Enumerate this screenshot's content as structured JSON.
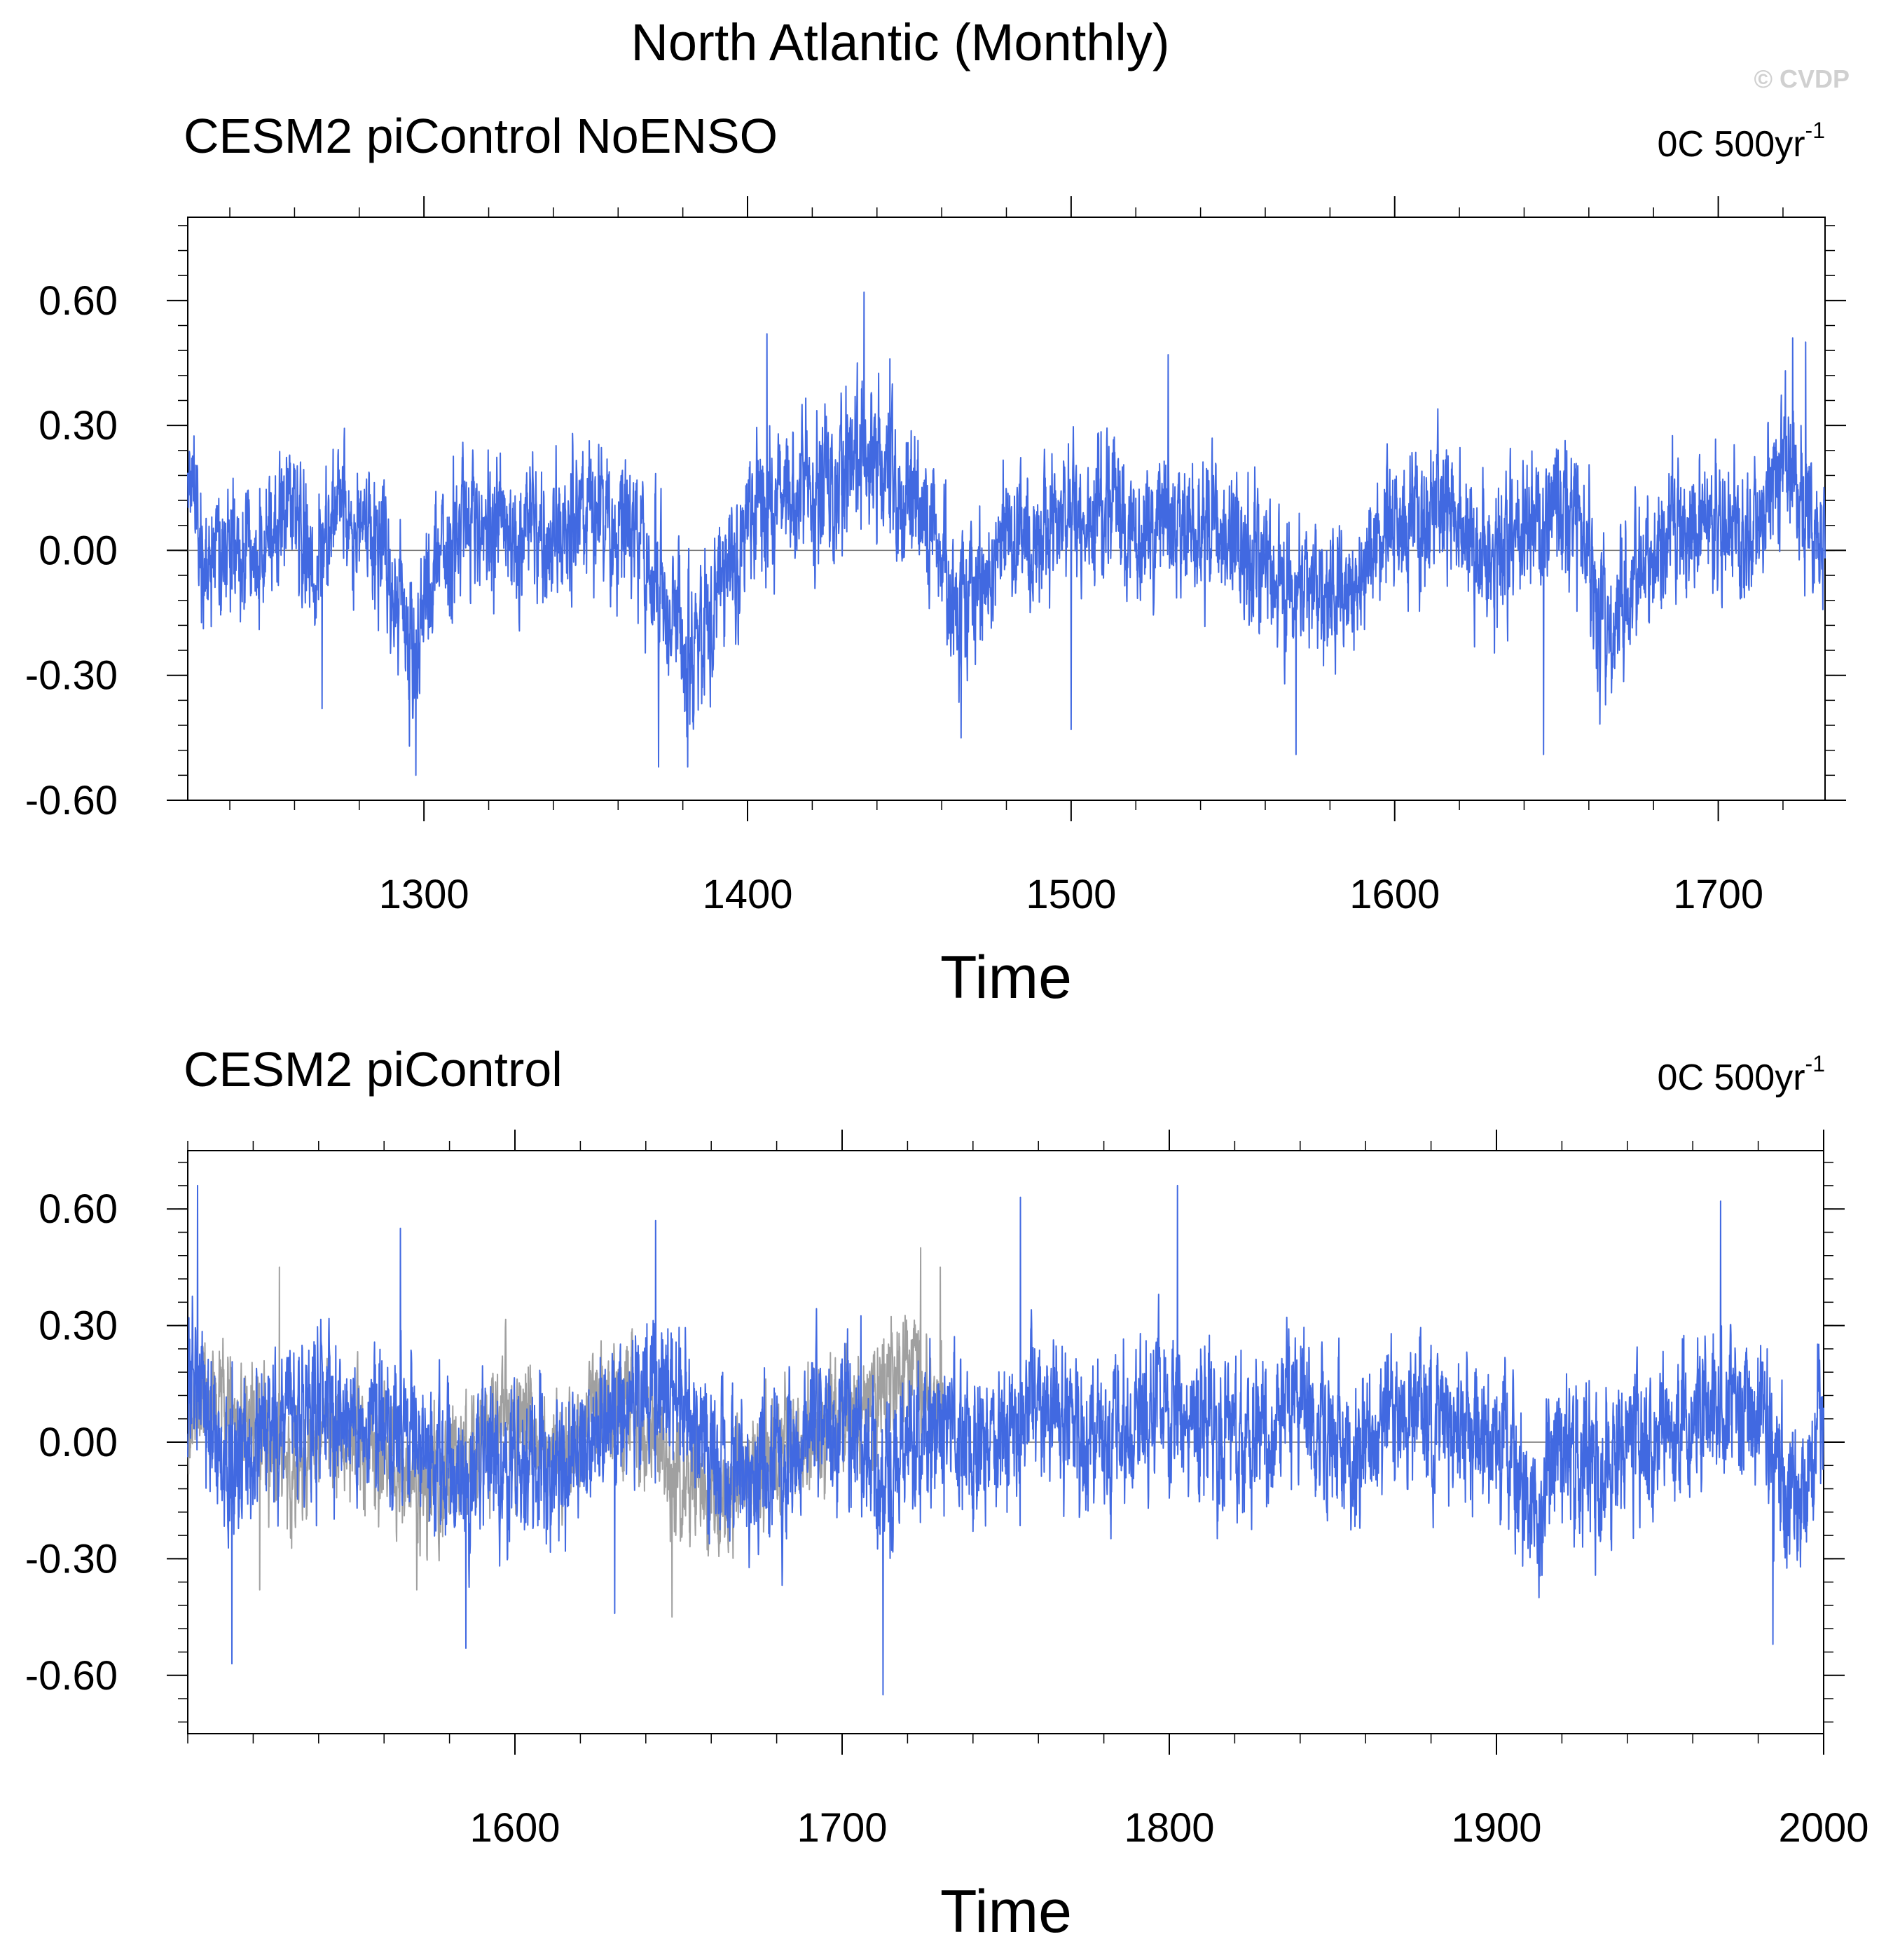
{
  "figure_title": "North Atlantic (Monthly)",
  "watermark": "© CVDP",
  "colors": {
    "model": "#4169e1",
    "overlay": "#a0a0a0",
    "axis": "#000000"
  },
  "chart_data": [
    {
      "type": "line",
      "title": "CESM2 piControl NoENSO",
      "trend_label": "0C 500yr",
      "trend_label_sup": "-1",
      "xlabel": "Time",
      "ylabel": "",
      "xlim": [
        1227,
        1733
      ],
      "ylim": [
        -0.6,
        0.8
      ],
      "xticks": [
        1300,
        1400,
        1500,
        1600,
        1700
      ],
      "xtick_labels": [
        "1300",
        "1400",
        "1500",
        "1600",
        "1700"
      ],
      "yticks": [
        -0.6,
        -0.3,
        0.0,
        0.3,
        0.6
      ],
      "ytick_labels": [
        "-0.60",
        "-0.30",
        "0.00",
        "0.30",
        "0.60"
      ],
      "grid": false,
      "zero_line": true,
      "series": [
        {
          "color": "#4169e1",
          "x_start": 1227,
          "x_end": 1733,
          "samples_per_year": 12,
          "anchors": {
            "x": [
              1228,
              1232,
              1235,
              1245,
              1258,
              1266,
              1275,
              1285,
              1292,
              1297,
              1303,
              1315,
              1325,
              1340,
              1350,
              1362,
              1372,
              1382,
              1392,
              1405,
              1420,
              1435,
              1445,
              1455,
              1465,
              1480,
              1500,
              1510,
              1520,
              1530,
              1545,
              1560,
              1575,
              1590,
              1600,
              1612,
              1625,
              1640,
              1655,
              1665,
              1680,
              1700,
              1715,
              1722,
              1728,
              1733
            ],
            "y": [
              0.2,
              0.0,
              -0.05,
              -0.03,
              0.12,
              -0.05,
              0.08,
              0.02,
              -0.12,
              -0.2,
              -0.05,
              0.05,
              0.08,
              0.03,
              0.12,
              0.05,
              -0.05,
              -0.28,
              -0.05,
              0.1,
              0.15,
              0.22,
              0.15,
              0.1,
              -0.15,
              0.02,
              0.08,
              0.12,
              0.03,
              0.05,
              0.06,
              -0.05,
              -0.1,
              -0.08,
              0.05,
              0.1,
              0.0,
              0.02,
              0.1,
              -0.18,
              0.02,
              0.05,
              0.08,
              0.2,
              0.08,
              0.0
            ]
          },
          "noise_sd": 0.085,
          "peaks": [
            {
              "x": 1436.0,
              "y": 0.62
            },
            {
              "x": 1406.0,
              "y": 0.52
            },
            {
              "x": 1444.0,
              "y": 0.46
            },
            {
              "x": 1530.0,
              "y": 0.47
            },
            {
              "x": 1723.0,
              "y": 0.51
            },
            {
              "x": 1727.0,
              "y": 0.5
            },
            {
              "x": 1297.5,
              "y": -0.54
            },
            {
              "x": 1381.5,
              "y": -0.52
            },
            {
              "x": 1372.5,
              "y": -0.52
            },
            {
              "x": 1569.5,
              "y": -0.49
            },
            {
              "x": 1646.0,
              "y": -0.49
            },
            {
              "x": 1466.0,
              "y": -0.45
            },
            {
              "x": 1500.0,
              "y": -0.43
            },
            {
              "x": 1268.5,
              "y": -0.38
            },
            {
              "x": 1295.5,
              "y": -0.47
            }
          ],
          "seed": 17
        }
      ]
    },
    {
      "type": "line",
      "title": "CESM2 piControl",
      "trend_label": "0C 500yr",
      "trend_label_sup": "-1",
      "xlabel": "Time",
      "ylabel": "",
      "xlim": [
        1500,
        2000
      ],
      "ylim": [
        -0.75,
        0.75
      ],
      "xticks": [
        1600,
        1700,
        1800,
        1900,
        2000
      ],
      "xtick_labels": [
        "1600",
        "1700",
        "1800",
        "1900",
        "2000"
      ],
      "yticks": [
        -0.6,
        -0.3,
        0.0,
        0.3,
        0.6
      ],
      "ytick_labels": [
        "-0.60",
        "-0.30",
        "0.00",
        "0.30",
        "0.60"
      ],
      "grid": false,
      "zero_line": true,
      "series": [
        {
          "color": "#a0a0a0",
          "x_start": 1500,
          "x_end": 1731,
          "samples_per_year": 12,
          "anchors": {
            "x": [
              1500,
              1510,
              1520,
              1530,
              1545,
              1560,
              1570,
              1585,
              1595,
              1605,
              1615,
              1625,
              1640,
              1650,
              1665,
              1680,
              1695,
              1710,
              1722,
              1731
            ],
            "y": [
              0.1,
              0.1,
              0.05,
              -0.08,
              0.05,
              -0.05,
              -0.12,
              -0.05,
              0.08,
              0.02,
              -0.05,
              0.1,
              0.05,
              -0.1,
              -0.15,
              0.0,
              0.02,
              0.12,
              0.2,
              0.05
            ]
          },
          "noise_sd": 0.08,
          "peaks": [
            {
              "x": 1528.0,
              "y": 0.45
            },
            {
              "x": 1724.0,
              "y": 0.5
            },
            {
              "x": 1730.0,
              "y": 0.45
            },
            {
              "x": 1522.0,
              "y": -0.38
            },
            {
              "x": 1648.0,
              "y": -0.45
            },
            {
              "x": 1570.0,
              "y": -0.38
            }
          ],
          "seed": 29
        },
        {
          "color": "#4169e1",
          "x_start": 1500,
          "x_end": 2000,
          "samples_per_year": 12,
          "anchors": {
            "x": [
              1500,
              1503,
              1510,
              1525,
              1540,
              1555,
              1570,
              1585,
              1600,
              1615,
              1625,
              1640,
              1650,
              1660,
              1675,
              1690,
              1705,
              1715,
              1730,
              1745,
              1760,
              1775,
              1790,
              1800,
              1810,
              1825,
              1840,
              1855,
              1870,
              1885,
              1900,
              1910,
              1920,
              1935,
              1950,
              1965,
              1975,
              1985,
              1992,
              2000
            ],
            "y": [
              0.05,
              0.25,
              -0.08,
              0.02,
              0.1,
              0.05,
              0.02,
              -0.15,
              -0.05,
              -0.1,
              0.05,
              0.15,
              0.12,
              -0.05,
              -0.1,
              0.05,
              0.02,
              -0.1,
              0.05,
              -0.05,
              0.12,
              0.02,
              0.05,
              0.1,
              0.05,
              0.0,
              0.1,
              -0.02,
              0.08,
              0.05,
              0.03,
              -0.18,
              0.0,
              -0.05,
              0.05,
              0.08,
              0.1,
              -0.02,
              -0.15,
              0.05
            ]
          },
          "noise_sd": 0.1,
          "peaks": [
            {
              "x": 1802.5,
              "y": 0.66
            },
            {
              "x": 1503.0,
              "y": 0.66
            },
            {
              "x": 1754.5,
              "y": 0.63
            },
            {
              "x": 1968.5,
              "y": 0.62
            },
            {
              "x": 1643.0,
              "y": 0.57
            },
            {
              "x": 1565.0,
              "y": 0.55
            },
            {
              "x": 1712.5,
              "y": -0.65
            },
            {
              "x": 1513.5,
              "y": -0.57
            },
            {
              "x": 1984.5,
              "y": -0.52
            },
            {
              "x": 1585.0,
              "y": -0.53
            },
            {
              "x": 1630.5,
              "y": -0.44
            },
            {
              "x": 1913.0,
              "y": -0.4
            }
          ],
          "seed": 53
        }
      ]
    }
  ]
}
